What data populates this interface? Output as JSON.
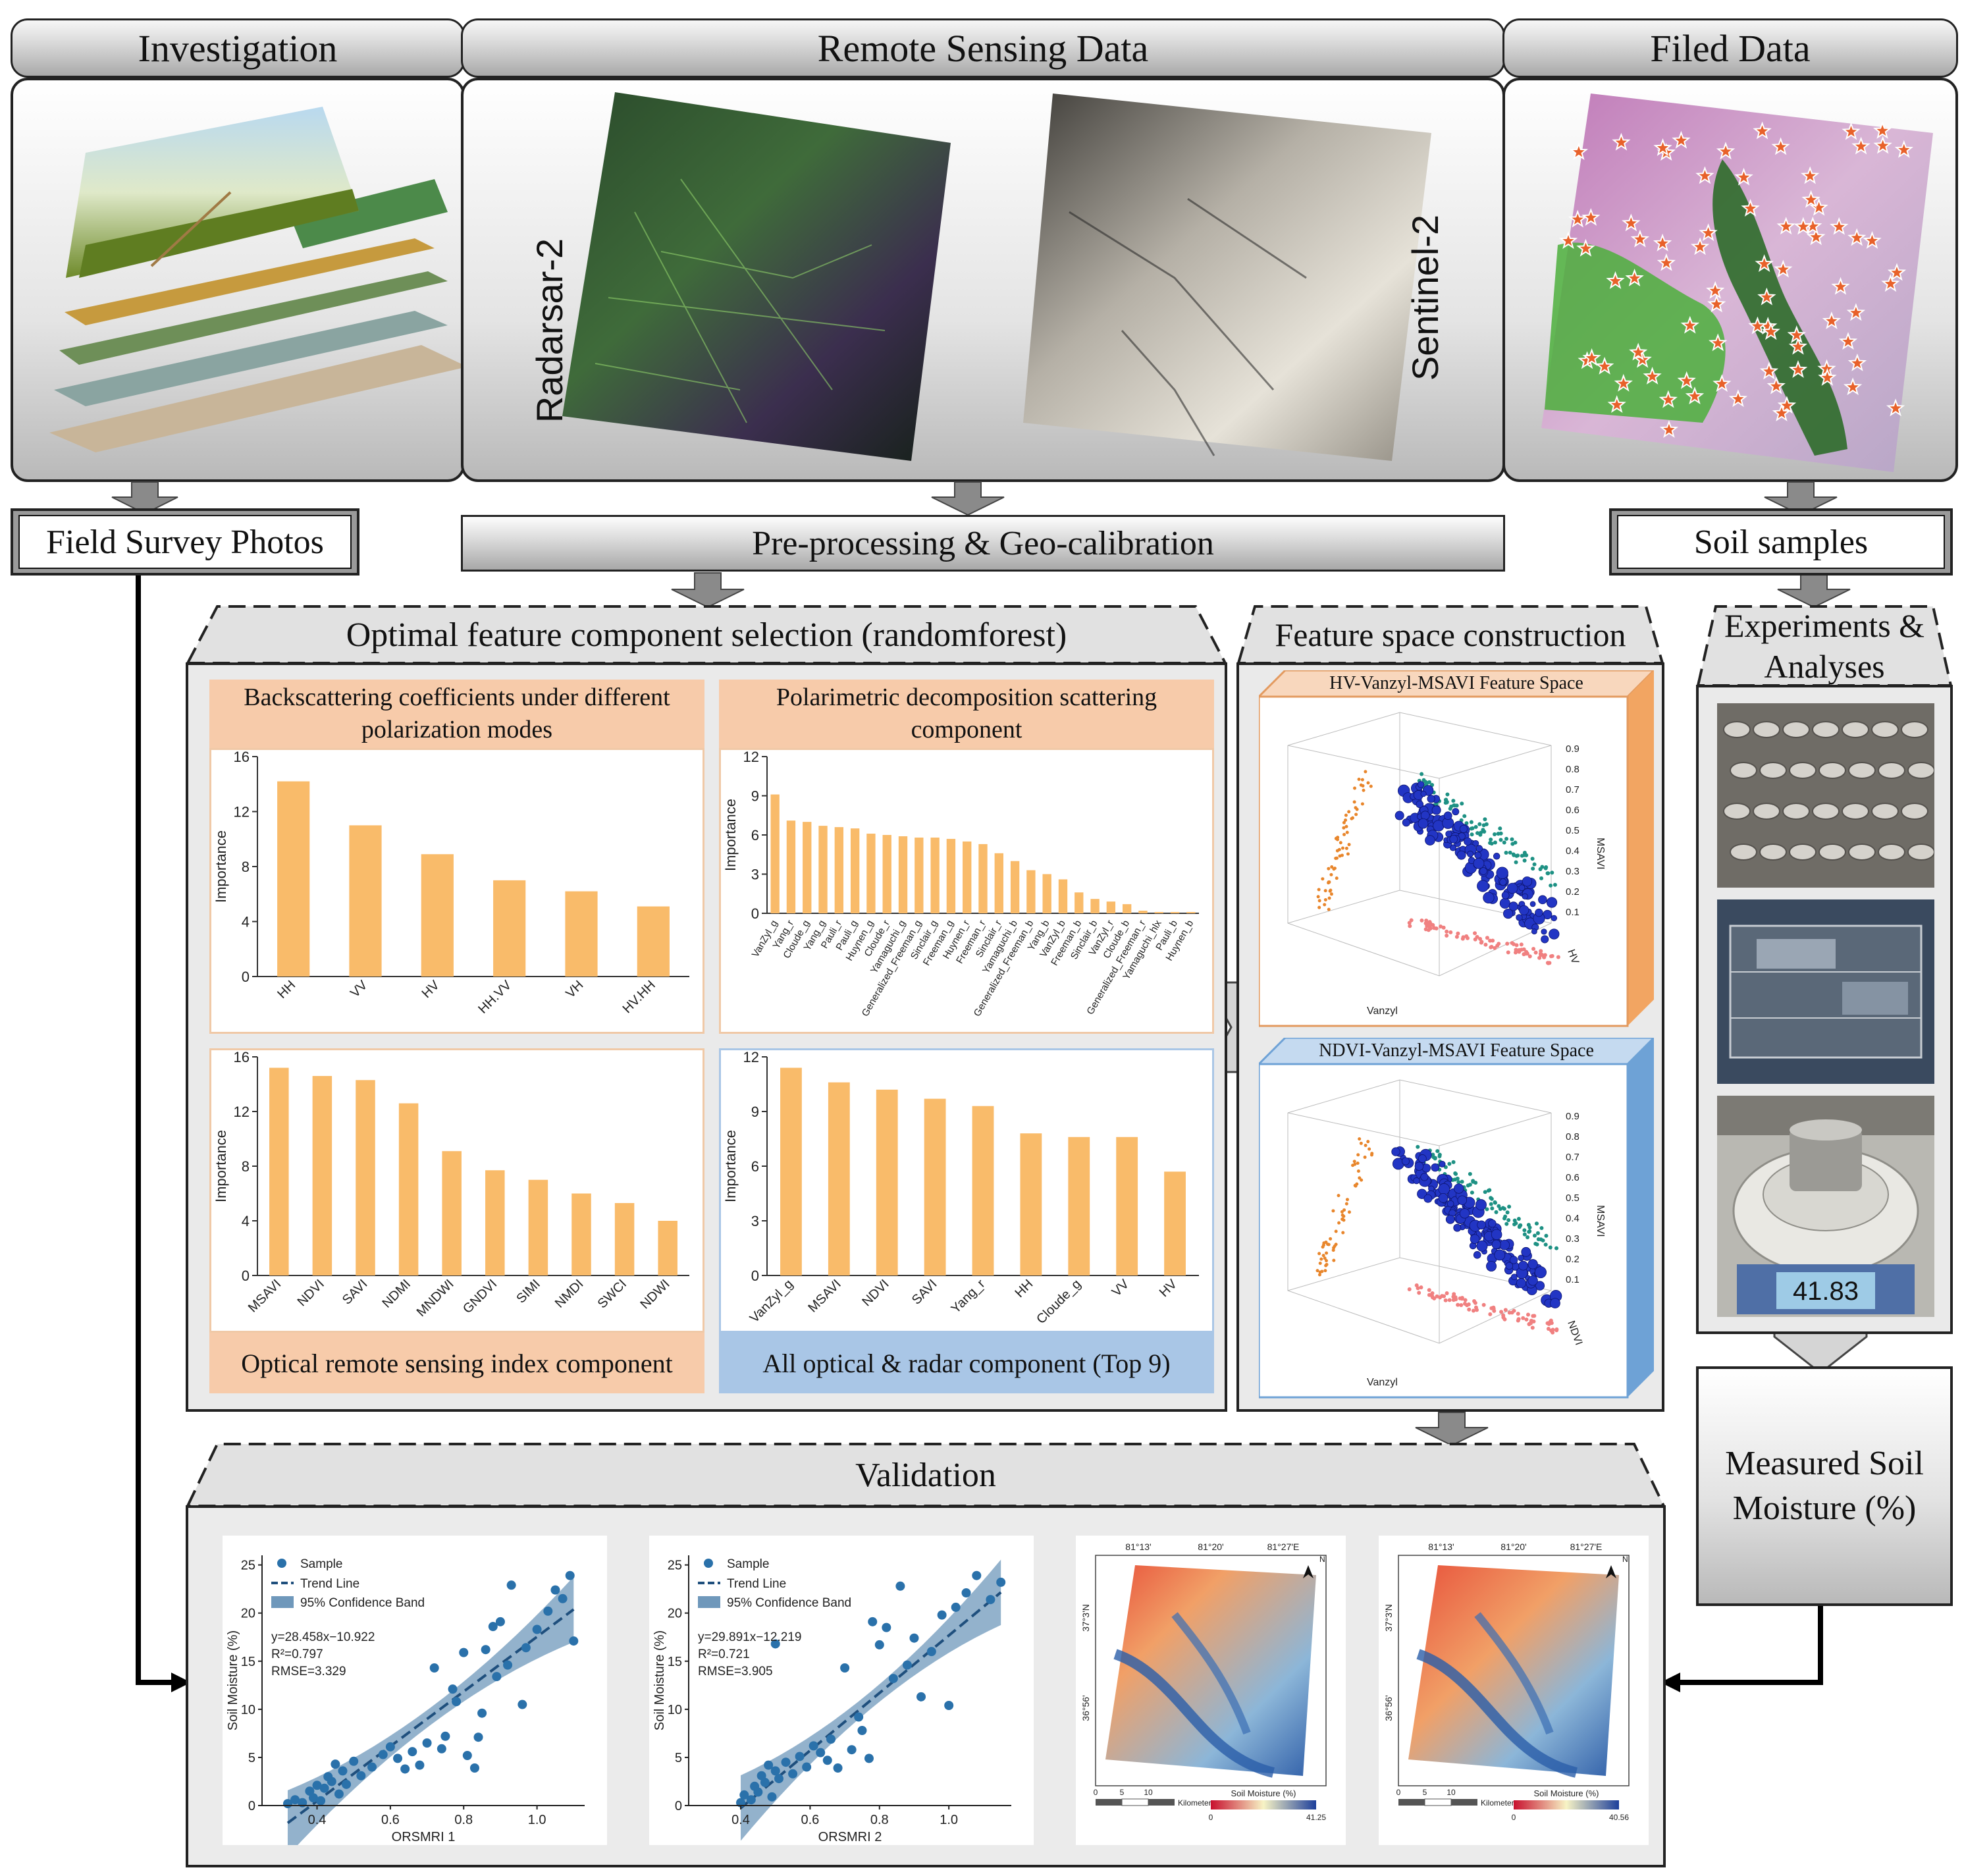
{
  "headers": {
    "investigation": "Investigation",
    "remote_sensing": "Remote Sensing Data",
    "field_data": "Filed Data"
  },
  "satellites": {
    "left": "Radarsar-2",
    "right": "Sentinel-2"
  },
  "boxes": {
    "field_survey": "Field Survey Photos",
    "preprocessing": "Pre-processing & Geo-calibration",
    "soil_samples": "Soil samples",
    "optimal_selection": "Optimal feature component selection (randomforest)",
    "feature_space": "Feature space construction",
    "experiments": "Experiments & Analyses",
    "measured": "Measured Soil Moisture (%)",
    "validation": "Validation"
  },
  "subpanels": {
    "backscatter_title": "Backscattering coefficients under different polarization modes",
    "polarimetric_title": "Polarimetric decomposition scattering component",
    "optical_caption": "Optical remote sensing index component",
    "all_caption": "All optical & radar component (Top 9)",
    "fs1_title": "HV-Vanzyl-MSAVI Feature Space",
    "fs2_title": "NDVI-Vanzyl-MSAVI Feature Space",
    "balance_reading": "41.83"
  },
  "chart_data": [
    {
      "type": "bar",
      "ylabel": "Importance",
      "ylim": [
        0,
        16
      ],
      "yticks": [
        0,
        4,
        8,
        12,
        16
      ],
      "categories": [
        "HH",
        "VV",
        "HV",
        "HH.VV",
        "VH",
        "HV.HH"
      ],
      "values": [
        14.2,
        11.0,
        8.9,
        7.0,
        6.2,
        5.1
      ]
    },
    {
      "type": "bar",
      "ylabel": "Importance",
      "ylim": [
        0,
        12
      ],
      "yticks": [
        0,
        3,
        6,
        9,
        12
      ],
      "categories": [
        "VanZyl_g",
        "Yang_r",
        "Cloude_g",
        "Yang_g",
        "Pauli_r",
        "Pauli_g",
        "Huynen_g",
        "Cloude_r",
        "Yamaguchi_g",
        "Generalized_Freeman_g",
        "Sinclair_g",
        "Freeman_g",
        "Huynen_r",
        "Freeman_r",
        "Sinclair_r",
        "Yamaguchi_b",
        "Generalized_Freeman_b",
        "Yang_b",
        "VanZyl_b",
        "Freeman_b",
        "Sinclair_b",
        "VanZyl_r",
        "Cloude_b",
        "Generalized_Freeman_r",
        "Yamaguchi_hlx",
        "Pauli_b",
        "Huynen_b"
      ],
      "values": [
        9.1,
        7.1,
        7.0,
        6.7,
        6.6,
        6.5,
        6.1,
        6.0,
        5.9,
        5.8,
        5.8,
        5.7,
        5.5,
        5.3,
        4.6,
        4.0,
        3.3,
        3.0,
        2.6,
        1.6,
        1.1,
        0.9,
        0.7,
        0.2,
        0.1,
        0.1,
        0.1
      ]
    },
    {
      "type": "bar",
      "ylabel": "Importance",
      "ylim": [
        0,
        16
      ],
      "yticks": [
        0,
        4,
        8,
        12,
        16
      ],
      "categories": [
        "MSAVI",
        "NDVI",
        "SAVI",
        "NDMI",
        "MNDWI",
        "GNDVI",
        "SIMI",
        "NMDI",
        "SWCI",
        "NDWI"
      ],
      "values": [
        15.2,
        14.6,
        14.3,
        12.6,
        9.1,
        7.7,
        7.0,
        6.0,
        5.3,
        4.0
      ]
    },
    {
      "type": "bar",
      "ylabel": "Importance",
      "ylim": [
        0,
        12
      ],
      "yticks": [
        0,
        3,
        6,
        9,
        12
      ],
      "categories": [
        "VanZyl_g",
        "MSAVI",
        "NDVI",
        "SAVI",
        "Yang_r",
        "HH",
        "Cloude_g",
        "VV",
        "HV"
      ],
      "values": [
        11.4,
        10.6,
        10.2,
        9.7,
        9.3,
        7.8,
        7.6,
        7.6,
        5.7
      ]
    },
    {
      "type": "scatter",
      "xlabel": "ORSMRI 1",
      "ylabel": "Soil Moisture (%)",
      "xticks": [
        "0.4",
        "0.6",
        "0.8",
        "1.0"
      ],
      "yticks": [
        "0",
        "5",
        "10",
        "15",
        "20",
        "25"
      ],
      "xlim": [
        0.25,
        1.13
      ],
      "ylim": [
        0,
        26
      ],
      "legend": [
        "Sample",
        "Trend Line",
        "95% Confidence Band"
      ],
      "equation": "y=28.458x−10.922",
      "r2": "R²=0.797",
      "rmse": "RMSE=3.329",
      "slope": 28.458,
      "intercept": -10.922,
      "points": [
        [
          0.32,
          0.2
        ],
        [
          0.34,
          0.6
        ],
        [
          0.36,
          0.3
        ],
        [
          0.38,
          1.5
        ],
        [
          0.39,
          0.8
        ],
        [
          0.4,
          2.1
        ],
        [
          0.41,
          0.5
        ],
        [
          0.42,
          1.8
        ],
        [
          0.43,
          3.0
        ],
        [
          0.44,
          2.5
        ],
        [
          0.45,
          4.3
        ],
        [
          0.46,
          1.2
        ],
        [
          0.47,
          3.6
        ],
        [
          0.48,
          2.2
        ],
        [
          0.5,
          4.6
        ],
        [
          0.52,
          3.1
        ],
        [
          0.55,
          4.0
        ],
        [
          0.58,
          5.3
        ],
        [
          0.6,
          6.1
        ],
        [
          0.62,
          4.9
        ],
        [
          0.64,
          3.8
        ],
        [
          0.66,
          5.6
        ],
        [
          0.68,
          4.2
        ],
        [
          0.7,
          6.5
        ],
        [
          0.72,
          14.3
        ],
        [
          0.75,
          7.2
        ],
        [
          0.77,
          12.1
        ],
        [
          0.78,
          10.8
        ],
        [
          0.8,
          15.9
        ],
        [
          0.81,
          5.2
        ],
        [
          0.83,
          3.9
        ],
        [
          0.85,
          9.6
        ],
        [
          0.86,
          16.2
        ],
        [
          0.88,
          18.6
        ],
        [
          0.89,
          13.4
        ],
        [
          0.9,
          19.1
        ],
        [
          0.92,
          14.6
        ],
        [
          0.93,
          22.9
        ],
        [
          0.96,
          10.5
        ],
        [
          1.0,
          18.3
        ],
        [
          1.03,
          20.2
        ],
        [
          1.05,
          22.4
        ],
        [
          1.07,
          21.5
        ],
        [
          1.09,
          23.9
        ],
        [
          1.1,
          17.1
        ],
        [
          0.74,
          5.9
        ],
        [
          0.84,
          7.1
        ],
        [
          0.97,
          16.4
        ]
      ]
    },
    {
      "type": "scatter",
      "xlabel": "ORSMRI 2",
      "ylabel": "Soil Moisture (%)",
      "xticks": [
        "0.4",
        "0.6",
        "0.8",
        "1.0"
      ],
      "yticks": [
        "0",
        "5",
        "10",
        "15",
        "20",
        "25"
      ],
      "xlim": [
        0.25,
        1.18
      ],
      "ylim": [
        0,
        26
      ],
      "legend": [
        "Sample",
        "Trend Line",
        "95% Confidence Band"
      ],
      "equation": "y=29.891x−12.219",
      "r2": "R²=0.721",
      "rmse": "RMSE=3.905",
      "slope": 29.891,
      "intercept": -12.219,
      "points": [
        [
          0.4,
          0.3
        ],
        [
          0.41,
          1.1
        ],
        [
          0.43,
          0.6
        ],
        [
          0.44,
          2.0
        ],
        [
          0.45,
          1.4
        ],
        [
          0.46,
          3.1
        ],
        [
          0.47,
          2.4
        ],
        [
          0.48,
          4.2
        ],
        [
          0.49,
          0.9
        ],
        [
          0.5,
          3.6
        ],
        [
          0.51,
          2.8
        ],
        [
          0.53,
          4.5
        ],
        [
          0.55,
          3.3
        ],
        [
          0.57,
          5.1
        ],
        [
          0.59,
          4.0
        ],
        [
          0.61,
          6.2
        ],
        [
          0.63,
          5.5
        ],
        [
          0.65,
          4.7
        ],
        [
          0.68,
          3.9
        ],
        [
          0.7,
          14.3
        ],
        [
          0.72,
          5.8
        ],
        [
          0.74,
          9.2
        ],
        [
          0.75,
          7.8
        ],
        [
          0.77,
          4.9
        ],
        [
          0.78,
          19.1
        ],
        [
          0.8,
          16.7
        ],
        [
          0.82,
          18.5
        ],
        [
          0.84,
          13.2
        ],
        [
          0.86,
          22.8
        ],
        [
          0.88,
          14.6
        ],
        [
          0.9,
          17.4
        ],
        [
          0.92,
          11.3
        ],
        [
          0.95,
          16.0
        ],
        [
          0.98,
          19.8
        ],
        [
          1.0,
          10.4
        ],
        [
          1.02,
          20.6
        ],
        [
          1.05,
          22.1
        ],
        [
          1.08,
          23.9
        ],
        [
          1.12,
          21.4
        ],
        [
          1.15,
          23.2
        ],
        [
          0.5,
          16.8
        ],
        [
          0.66,
          6.9
        ]
      ]
    }
  ],
  "maps": [
    {
      "top_ticks": [
        "81°13'",
        "81°20'",
        "81°27'E"
      ],
      "left_ticks": [
        "37°3'N",
        "36°56'"
      ],
      "scale": [
        "0",
        "5",
        "10",
        "Kilometers"
      ],
      "legend_title": "Soil Moisture (%)",
      "legend_min": "0",
      "legend_max": "41.25",
      "north": "N"
    },
    {
      "top_ticks": [
        "81°13'",
        "81°20'",
        "81°27'E"
      ],
      "left_ticks": [
        "37°3'N",
        "36°56'"
      ],
      "scale": [
        "0",
        "5",
        "10",
        "Kilometers"
      ],
      "legend_title": "Soil Moisture (%)",
      "legend_min": "0",
      "legend_max": "40.56",
      "north": "N"
    }
  ],
  "feature_space_axes": {
    "z_label": "MSAVI",
    "z_ticks": [
      "0.9",
      "0.8",
      "0.7",
      "0.6",
      "0.5",
      "0.4",
      "0.3",
      "0.2",
      "0.1"
    ],
    "x_label": "Vanzyl",
    "fs1_y_label": "HV",
    "fs2_y_label": "NDVI"
  },
  "colors": {
    "orange": "#f9bb6a",
    "peach": "#f7cbaa",
    "blue_panel": "#a9c6e6",
    "point_blue": "#2a64a0",
    "band": "#6f98bb"
  }
}
